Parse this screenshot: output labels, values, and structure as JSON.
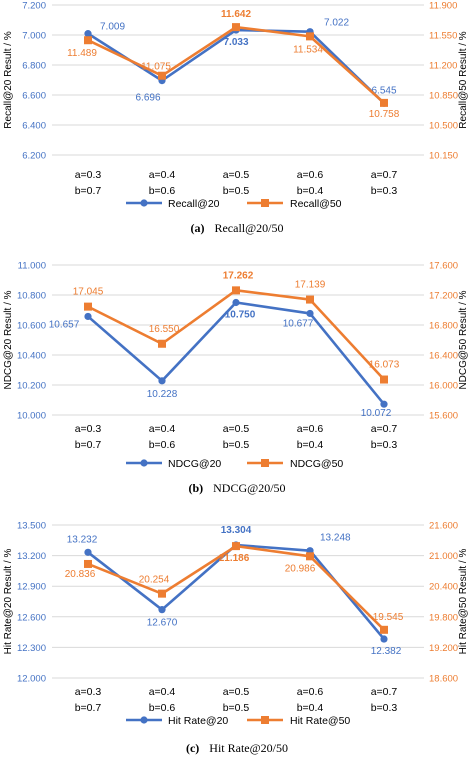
{
  "colors": {
    "left": "#4472C4",
    "right": "#ED7D31",
    "grid": "#D9D9D9"
  },
  "chart_data": [
    {
      "type": "line",
      "caption_prefix": "(a)",
      "caption_text": "Recall@20/50",
      "categories": [
        [
          "a=0.3",
          "b=0.7"
        ],
        [
          "a=0.4",
          "b=0.6"
        ],
        [
          "a=0.5",
          "b=0.5"
        ],
        [
          "a=0.6",
          "b=0.4"
        ],
        [
          "a=0.7",
          "b=0.3"
        ]
      ],
      "ylabel_left": "Recall@20 Result / %",
      "ylabel_right": "Recall@50 Result / %",
      "ylim_left": [
        6.2,
        7.2
      ],
      "ylim_right": [
        10.15,
        11.9
      ],
      "yticks_left": [
        "6.200",
        "6.400",
        "6.600",
        "6.800",
        "7.000",
        "7.200"
      ],
      "yticks_right": [
        "10.150",
        "10.500",
        "10.850",
        "11.200",
        "11.550",
        "11.900"
      ],
      "grid": true,
      "legend": "bottom",
      "series": [
        {
          "name": "Recall@20",
          "axis": "left",
          "marker": "circle",
          "values": [
            7.009,
            6.696,
            7.033,
            7.022,
            6.545
          ],
          "labels": [
            "7.009",
            "6.696",
            "7.033",
            "7.022",
            "6.545"
          ],
          "bold": [
            false,
            false,
            true,
            false,
            false
          ]
        },
        {
          "name": "Recall@50",
          "axis": "right",
          "marker": "square",
          "values": [
            11.489,
            11.075,
            11.642,
            11.534,
            10.758
          ],
          "labels": [
            "11.489",
            "11.075",
            "11.642",
            "11.534",
            "10.758"
          ],
          "bold": [
            false,
            false,
            true,
            false,
            false
          ]
        }
      ]
    },
    {
      "type": "line",
      "caption_prefix": "(b)",
      "caption_text": "NDCG@20/50",
      "categories": [
        [
          "a=0.3",
          "b=0.7"
        ],
        [
          "a=0.4",
          "b=0.6"
        ],
        [
          "a=0.5",
          "b=0.5"
        ],
        [
          "a=0.6",
          "b=0.4"
        ],
        [
          "a=0.7",
          "b=0.3"
        ]
      ],
      "ylabel_left": "NDCG@20 Result / %",
      "ylabel_right": "NDCG@50 Result / %",
      "ylim_left": [
        10.0,
        11.0
      ],
      "ylim_right": [
        15.6,
        17.6
      ],
      "yticks_left": [
        "10.000",
        "10.200",
        "10.400",
        "10.600",
        "10.800",
        "11.000"
      ],
      "yticks_right": [
        "15.600",
        "16.000",
        "16.400",
        "16.800",
        "17.200",
        "17.600"
      ],
      "grid": true,
      "legend": "bottom",
      "series": [
        {
          "name": "NDCG@20",
          "axis": "left",
          "marker": "circle",
          "values": [
            10.657,
            10.228,
            10.75,
            10.677,
            10.072
          ],
          "labels": [
            "10.657",
            "10.228",
            "10.750",
            "10.677",
            "10.072"
          ],
          "bold": [
            false,
            false,
            true,
            false,
            false
          ]
        },
        {
          "name": "NDCG@50",
          "axis": "right",
          "marker": "square",
          "values": [
            17.045,
            16.55,
            17.262,
            17.139,
            16.073
          ],
          "labels": [
            "17.045",
            "16.550",
            "17.262",
            "17.139",
            "16.073"
          ],
          "bold": [
            false,
            false,
            true,
            false,
            false
          ]
        }
      ]
    },
    {
      "type": "line",
      "caption_prefix": "(c)",
      "caption_text": "Hit Rate@20/50",
      "categories": [
        [
          "a=0.3",
          "b=0.7"
        ],
        [
          "a=0.4",
          "b=0.6"
        ],
        [
          "a=0.5",
          "b=0.5"
        ],
        [
          "a=0.6",
          "b=0.4"
        ],
        [
          "a=0.7",
          "b=0.3"
        ]
      ],
      "ylabel_left": "Hit Rate@20 Result / %",
      "ylabel_right": "Hit Rate@50 Result / %",
      "ylim_left": [
        12.0,
        13.5
      ],
      "ylim_right": [
        18.6,
        21.6
      ],
      "yticks_left": [
        "12.000",
        "12.300",
        "12.600",
        "12.900",
        "13.200",
        "13.500"
      ],
      "yticks_right": [
        "18.600",
        "19.200",
        "19.800",
        "20.400",
        "21.000",
        "21.600"
      ],
      "grid": true,
      "legend": "bottom",
      "series": [
        {
          "name": "Hit Rate@20",
          "axis": "left",
          "marker": "circle",
          "values": [
            13.232,
            12.67,
            13.304,
            13.248,
            12.382
          ],
          "labels": [
            "13.232",
            "12.670",
            "13.304",
            "13.248",
            "12.382"
          ],
          "bold": [
            false,
            false,
            true,
            false,
            false
          ]
        },
        {
          "name": "Hit Rate@50",
          "axis": "right",
          "marker": "square",
          "values": [
            20.836,
            20.254,
            21.186,
            20.986,
            19.545
          ],
          "labels": [
            "20.836",
            "20.254",
            "21.186",
            "20.986",
            "19.545"
          ],
          "bold": [
            false,
            false,
            true,
            false,
            false
          ]
        }
      ]
    }
  ]
}
